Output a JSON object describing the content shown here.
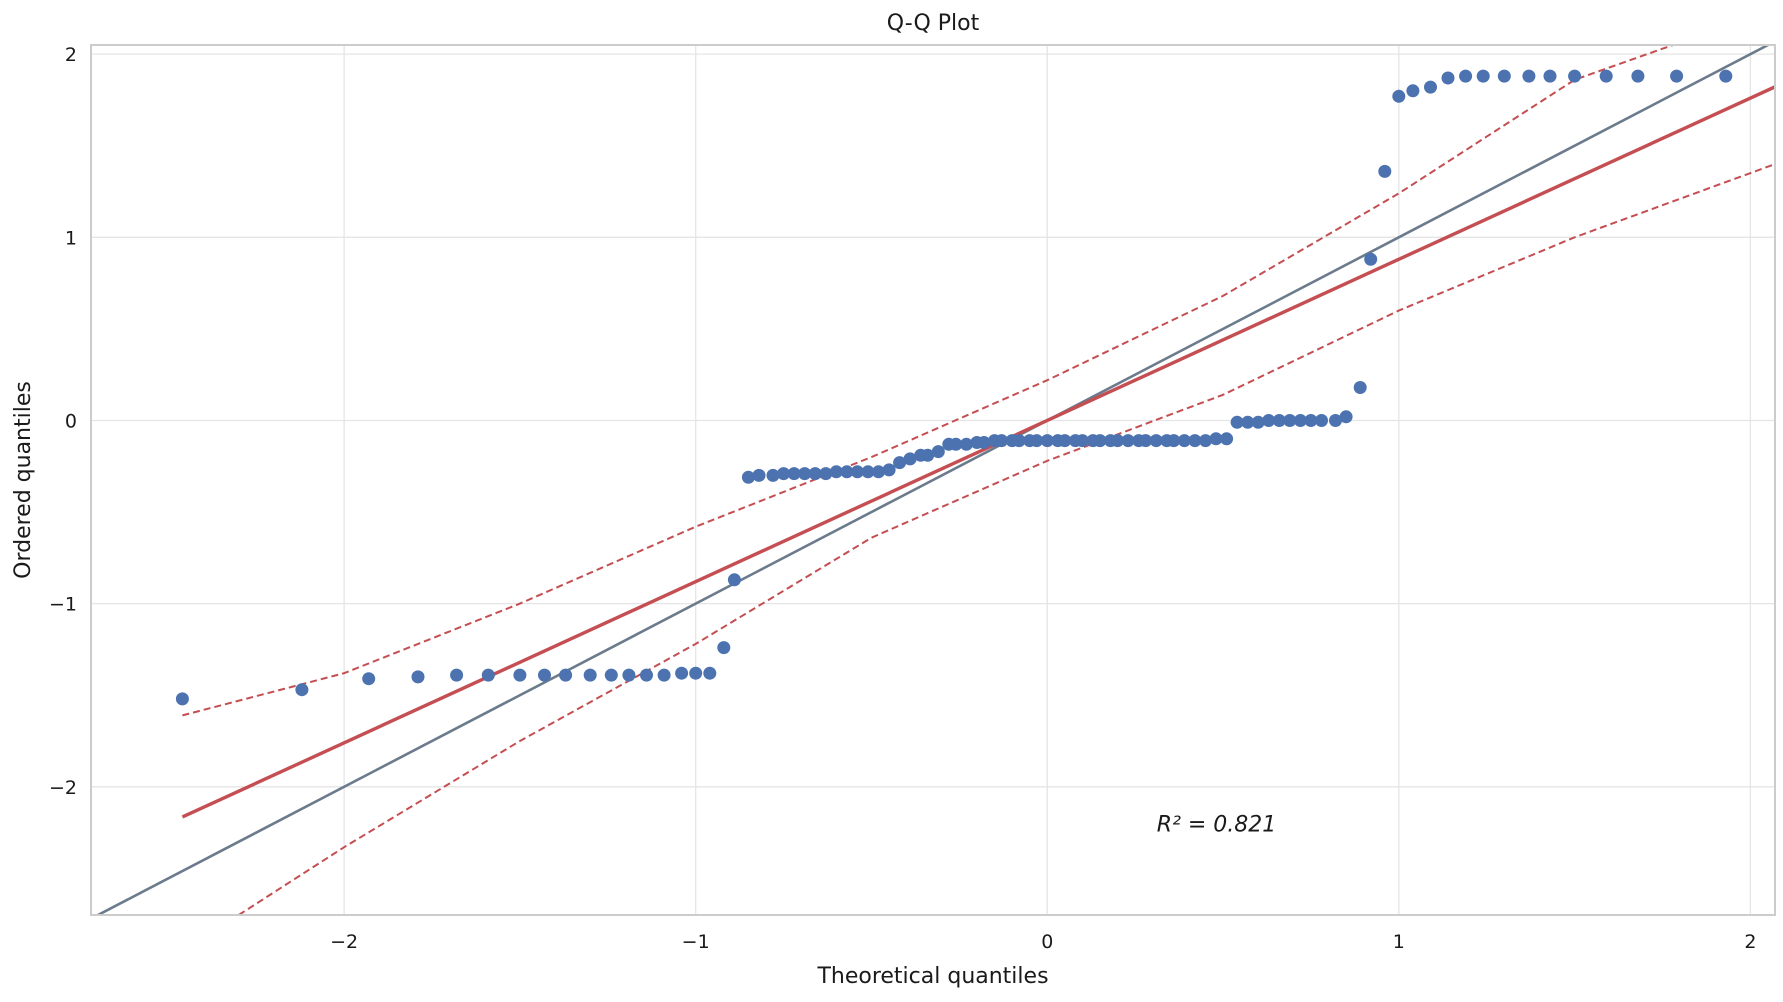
{
  "chart_data": {
    "type": "scatter",
    "title": "Q-Q Plot",
    "xlabel": "Theoretical quantiles",
    "ylabel": "Ordered quantiles",
    "xlim": [
      -2.72,
      2.07
    ],
    "ylim": [
      -2.7,
      2.05
    ],
    "xticks": [
      -2,
      -1,
      0,
      1,
      2
    ],
    "yticks": [
      -2,
      -1,
      0,
      1,
      2
    ],
    "xtick_labels": [
      "−2",
      "−1",
      "0",
      "1",
      "2"
    ],
    "ytick_labels": [
      "−2",
      "−1",
      "0",
      "1",
      "2"
    ],
    "grid": true,
    "annotation": {
      "text": "R² = 0.821",
      "r_squared": 0.821,
      "x": 0.34,
      "y": -2.2
    },
    "colors": {
      "points": "#4c72b0",
      "fit_line": "#c44e52",
      "reference_line": "#6b7b8c",
      "confidence_band": "#c44e52",
      "grid": "#e5e5e5",
      "spine": "#cccccc"
    },
    "reference_line": {
      "slope": 1.0,
      "intercept": 0.0
    },
    "fit_line": {
      "slope": 0.88,
      "intercept": 0.0,
      "x_range": [
        -2.46,
        2.07
      ]
    },
    "confidence_band": {
      "upper": [
        [
          -2.46,
          -1.61
        ],
        [
          -2.0,
          -1.38
        ],
        [
          -1.5,
          -1.0
        ],
        [
          -1.0,
          -0.58
        ],
        [
          -0.5,
          -0.2
        ],
        [
          0.0,
          0.22
        ],
        [
          0.5,
          0.68
        ],
        [
          1.0,
          1.24
        ],
        [
          1.5,
          1.86
        ],
        [
          1.78,
          2.05
        ]
      ],
      "lower": [
        [
          -2.3,
          -2.7
        ],
        [
          -2.0,
          -2.33
        ],
        [
          -1.5,
          -1.75
        ],
        [
          -1.0,
          -1.22
        ],
        [
          -0.5,
          -0.64
        ],
        [
          0.0,
          -0.22
        ],
        [
          0.5,
          0.14
        ],
        [
          1.0,
          0.6
        ],
        [
          1.5,
          1.0
        ],
        [
          2.07,
          1.4
        ]
      ]
    },
    "series": [
      {
        "points": [
          [
            -2.46,
            -1.52
          ],
          [
            -2.12,
            -1.47
          ],
          [
            -1.93,
            -1.41
          ],
          [
            -1.79,
            -1.4
          ],
          [
            -1.68,
            -1.39
          ],
          [
            -1.59,
            -1.39
          ],
          [
            -1.5,
            -1.39
          ],
          [
            -1.43,
            -1.39
          ],
          [
            -1.37,
            -1.39
          ],
          [
            -1.3,
            -1.39
          ],
          [
            -1.24,
            -1.39
          ],
          [
            -1.19,
            -1.39
          ],
          [
            -1.14,
            -1.39
          ],
          [
            -1.09,
            -1.39
          ],
          [
            -1.04,
            -1.38
          ],
          [
            -1.0,
            -1.38
          ],
          [
            -0.96,
            -1.38
          ],
          [
            -0.92,
            -1.24
          ],
          [
            -0.89,
            -0.87
          ],
          [
            -0.85,
            -0.31
          ],
          [
            -0.82,
            -0.3
          ],
          [
            -0.78,
            -0.3
          ],
          [
            -0.75,
            -0.29
          ],
          [
            -0.72,
            -0.29
          ],
          [
            -0.69,
            -0.29
          ],
          [
            -0.66,
            -0.29
          ],
          [
            -0.63,
            -0.29
          ],
          [
            -0.6,
            -0.28
          ],
          [
            -0.57,
            -0.28
          ],
          [
            -0.54,
            -0.28
          ],
          [
            -0.51,
            -0.28
          ],
          [
            -0.48,
            -0.28
          ],
          [
            -0.45,
            -0.27
          ],
          [
            -0.42,
            -0.23
          ],
          [
            -0.39,
            -0.21
          ],
          [
            -0.36,
            -0.19
          ],
          [
            -0.34,
            -0.19
          ],
          [
            -0.31,
            -0.17
          ],
          [
            -0.28,
            -0.13
          ],
          [
            -0.26,
            -0.13
          ],
          [
            -0.23,
            -0.13
          ],
          [
            -0.2,
            -0.12
          ],
          [
            -0.18,
            -0.12
          ],
          [
            -0.15,
            -0.11
          ],
          [
            -0.13,
            -0.11
          ],
          [
            -0.1,
            -0.11
          ],
          [
            -0.08,
            -0.11
          ],
          [
            -0.05,
            -0.11
          ],
          [
            -0.03,
            -0.11
          ],
          [
            0.0,
            -0.11
          ],
          [
            0.03,
            -0.11
          ],
          [
            0.05,
            -0.11
          ],
          [
            0.08,
            -0.11
          ],
          [
            0.1,
            -0.11
          ],
          [
            0.13,
            -0.11
          ],
          [
            0.15,
            -0.11
          ],
          [
            0.18,
            -0.11
          ],
          [
            0.2,
            -0.11
          ],
          [
            0.23,
            -0.11
          ],
          [
            0.26,
            -0.11
          ],
          [
            0.28,
            -0.11
          ],
          [
            0.31,
            -0.11
          ],
          [
            0.34,
            -0.11
          ],
          [
            0.36,
            -0.11
          ],
          [
            0.39,
            -0.11
          ],
          [
            0.42,
            -0.11
          ],
          [
            0.45,
            -0.11
          ],
          [
            0.48,
            -0.1
          ],
          [
            0.51,
            -0.1
          ],
          [
            0.54,
            -0.01
          ],
          [
            0.57,
            -0.01
          ],
          [
            0.6,
            -0.01
          ],
          [
            0.63,
            0.0
          ],
          [
            0.66,
            0.0
          ],
          [
            0.69,
            0.0
          ],
          [
            0.72,
            0.0
          ],
          [
            0.75,
            0.0
          ],
          [
            0.78,
            0.0
          ],
          [
            0.82,
            0.0
          ],
          [
            0.85,
            0.02
          ],
          [
            0.89,
            0.18
          ],
          [
            0.92,
            0.88
          ],
          [
            0.96,
            1.36
          ],
          [
            1.0,
            1.77
          ],
          [
            1.04,
            1.8
          ],
          [
            1.09,
            1.82
          ],
          [
            1.14,
            1.87
          ],
          [
            1.19,
            1.88
          ],
          [
            1.24,
            1.88
          ],
          [
            1.3,
            1.88
          ],
          [
            1.37,
            1.88
          ],
          [
            1.43,
            1.88
          ],
          [
            1.5,
            1.88
          ],
          [
            1.59,
            1.88
          ],
          [
            1.68,
            1.88
          ],
          [
            1.79,
            1.88
          ],
          [
            1.93,
            1.88
          ]
        ]
      }
    ]
  }
}
